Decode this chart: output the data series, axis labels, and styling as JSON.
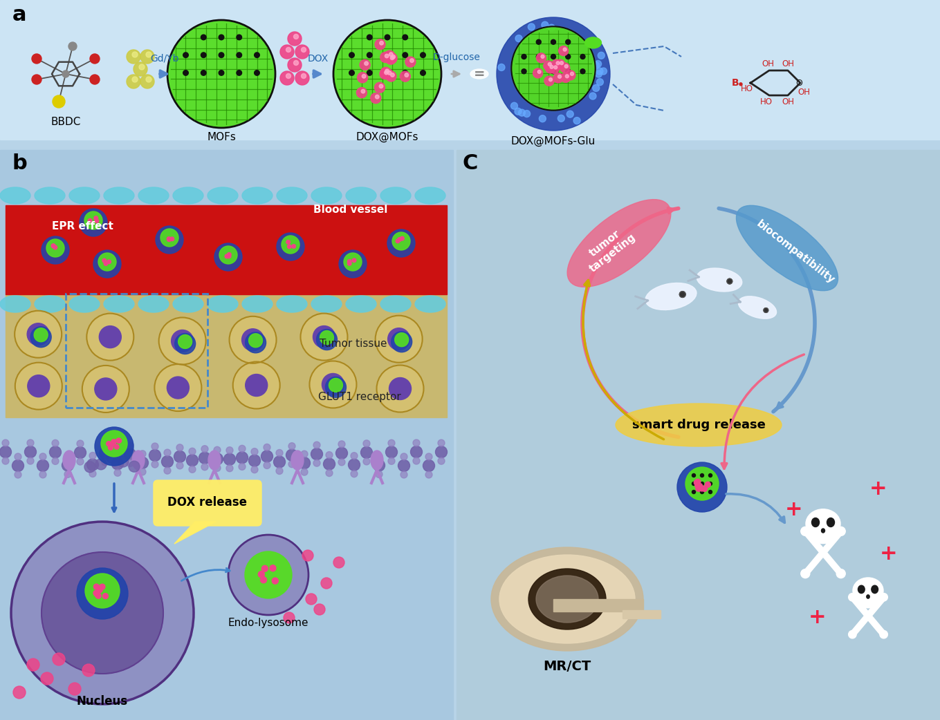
{
  "bg_color": "#b8d4e8",
  "panel_a_bg": "#cce4f4",
  "panel_b_bg": "#a8c8e0",
  "panel_c_bg": "#b0ccdc",
  "label_a": "a",
  "label_b": "b",
  "label_c": "C",
  "mof_green": "#55dd22",
  "mof_dark": "#228800",
  "dox_pink": "#ee4488",
  "dox_light": "#ffaacc",
  "blue_shell": "#2244aa",
  "blue_light": "#66aaff",
  "arrow_blue": "#5588cc",
  "blood_red": "#cc1111",
  "cell_cyan": "#66ccdd",
  "tumor_tan": "#c8b870",
  "tumor_tan2": "#d4c070",
  "tumor_border": "#aa8820",
  "nucleus_purple": "#6644aa",
  "membrane_purple": "#7060a8",
  "membrane_light": "#9080c0",
  "receptor_color": "#aa80cc",
  "bubble_yellow": "#ffee66",
  "nucleus_outer": "#7050a0",
  "nucleus_inner": "#5030a0",
  "endo_outer": "#7050a0",
  "endo_inner": "#503080",
  "pink_ellipse": "#ee6688",
  "blue_ellipse": "#5599cc",
  "yellow_ellipse": "#eecc44",
  "fish_color": "#eef4ff",
  "mri_outer": "#c8b898",
  "mri_inner": "#e8d8b8",
  "mri_bore": "#332211",
  "mri_bore2": "#887766",
  "skull_white": "#ffffff",
  "skull_dark": "#333333",
  "plus_color": "#ee2244",
  "arc_blue": "#6699cc",
  "arc_pink": "#ee6688",
  "arc_yellow": "#ccaa00",
  "text_white": "#ffffff",
  "text_black": "#000000",
  "text_dark": "#222222",
  "text_blue": "#2266aa",
  "text_red": "#cc2222",
  "gd_yb_color": "#cccc44",
  "arrow_gray": "#aaaaaa"
}
